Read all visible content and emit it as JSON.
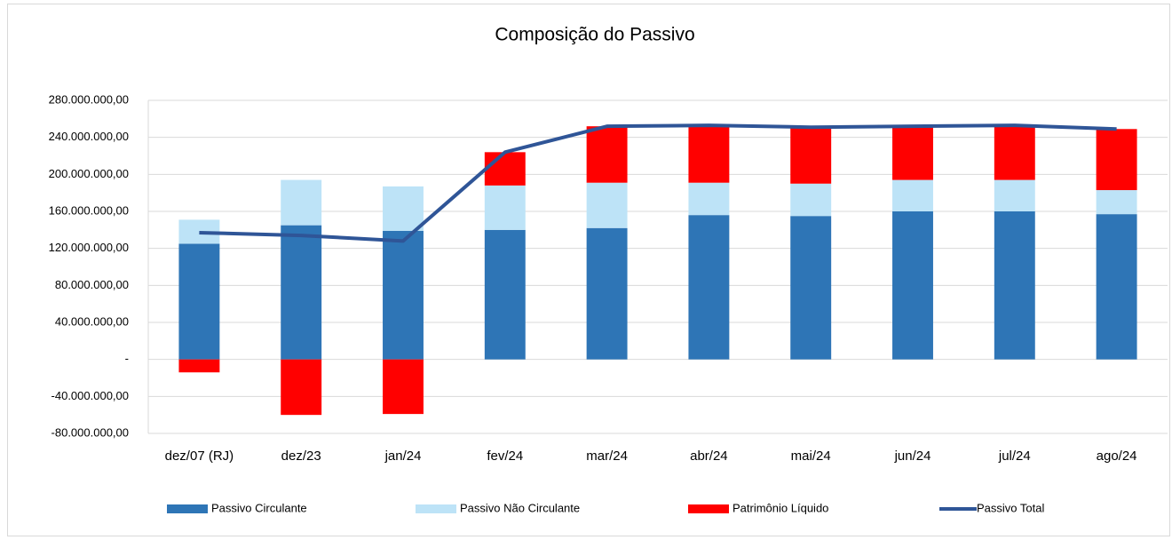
{
  "chart_data": {
    "type": "bar",
    "title": "Composição do Passivo",
    "categories": [
      "dez/07 (RJ)",
      "dez/23",
      "jan/24",
      "fev/24",
      "mar/24",
      "abr/24",
      "mai/24",
      "jun/24",
      "jul/24",
      "ago/24"
    ],
    "stacked": true,
    "series": [
      {
        "name": "Passivo Circulante",
        "type": "bar",
        "color": "#2e75b6",
        "values": [
          125000000,
          145000000,
          139000000,
          140000000,
          142000000,
          156000000,
          155000000,
          160000000,
          160000000,
          157000000
        ]
      },
      {
        "name": "Passivo Não Circulante",
        "type": "bar",
        "color": "#bde3f7",
        "values": [
          26000000,
          49000000,
          48000000,
          48000000,
          49000000,
          35000000,
          35000000,
          34000000,
          34000000,
          26000000
        ]
      },
      {
        "name": "Patrimônio Líquido",
        "type": "bar",
        "color": "#ff0000",
        "values": [
          -14000000,
          -60000000,
          -59000000,
          36000000,
          61000000,
          62000000,
          61000000,
          58000000,
          59000000,
          66000000
        ]
      },
      {
        "name": "Passivo Total",
        "type": "line",
        "color": "#2f5597",
        "values": [
          137000000,
          134000000,
          128000000,
          224000000,
          252000000,
          253000000,
          251000000,
          252000000,
          253000000,
          249000000
        ]
      }
    ],
    "ylim": [
      -80000000,
      280000000
    ],
    "yticks": [
      {
        "value": -80000000,
        "label": "-80.000.000,00"
      },
      {
        "value": -40000000,
        "label": "-40.000.000,00"
      },
      {
        "value": 0,
        "label": "-"
      },
      {
        "value": 40000000,
        "label": "40.000.000,00"
      },
      {
        "value": 80000000,
        "label": "80.000.000,00"
      },
      {
        "value": 120000000,
        "label": "120.000.000,00"
      },
      {
        "value": 160000000,
        "label": "160.000.000,00"
      },
      {
        "value": 200000000,
        "label": "200.000.000,00"
      },
      {
        "value": 240000000,
        "label": "240.000.000,00"
      },
      {
        "value": 280000000,
        "label": "280.000.000,00"
      }
    ],
    "grid": true,
    "legend": "bottom"
  }
}
